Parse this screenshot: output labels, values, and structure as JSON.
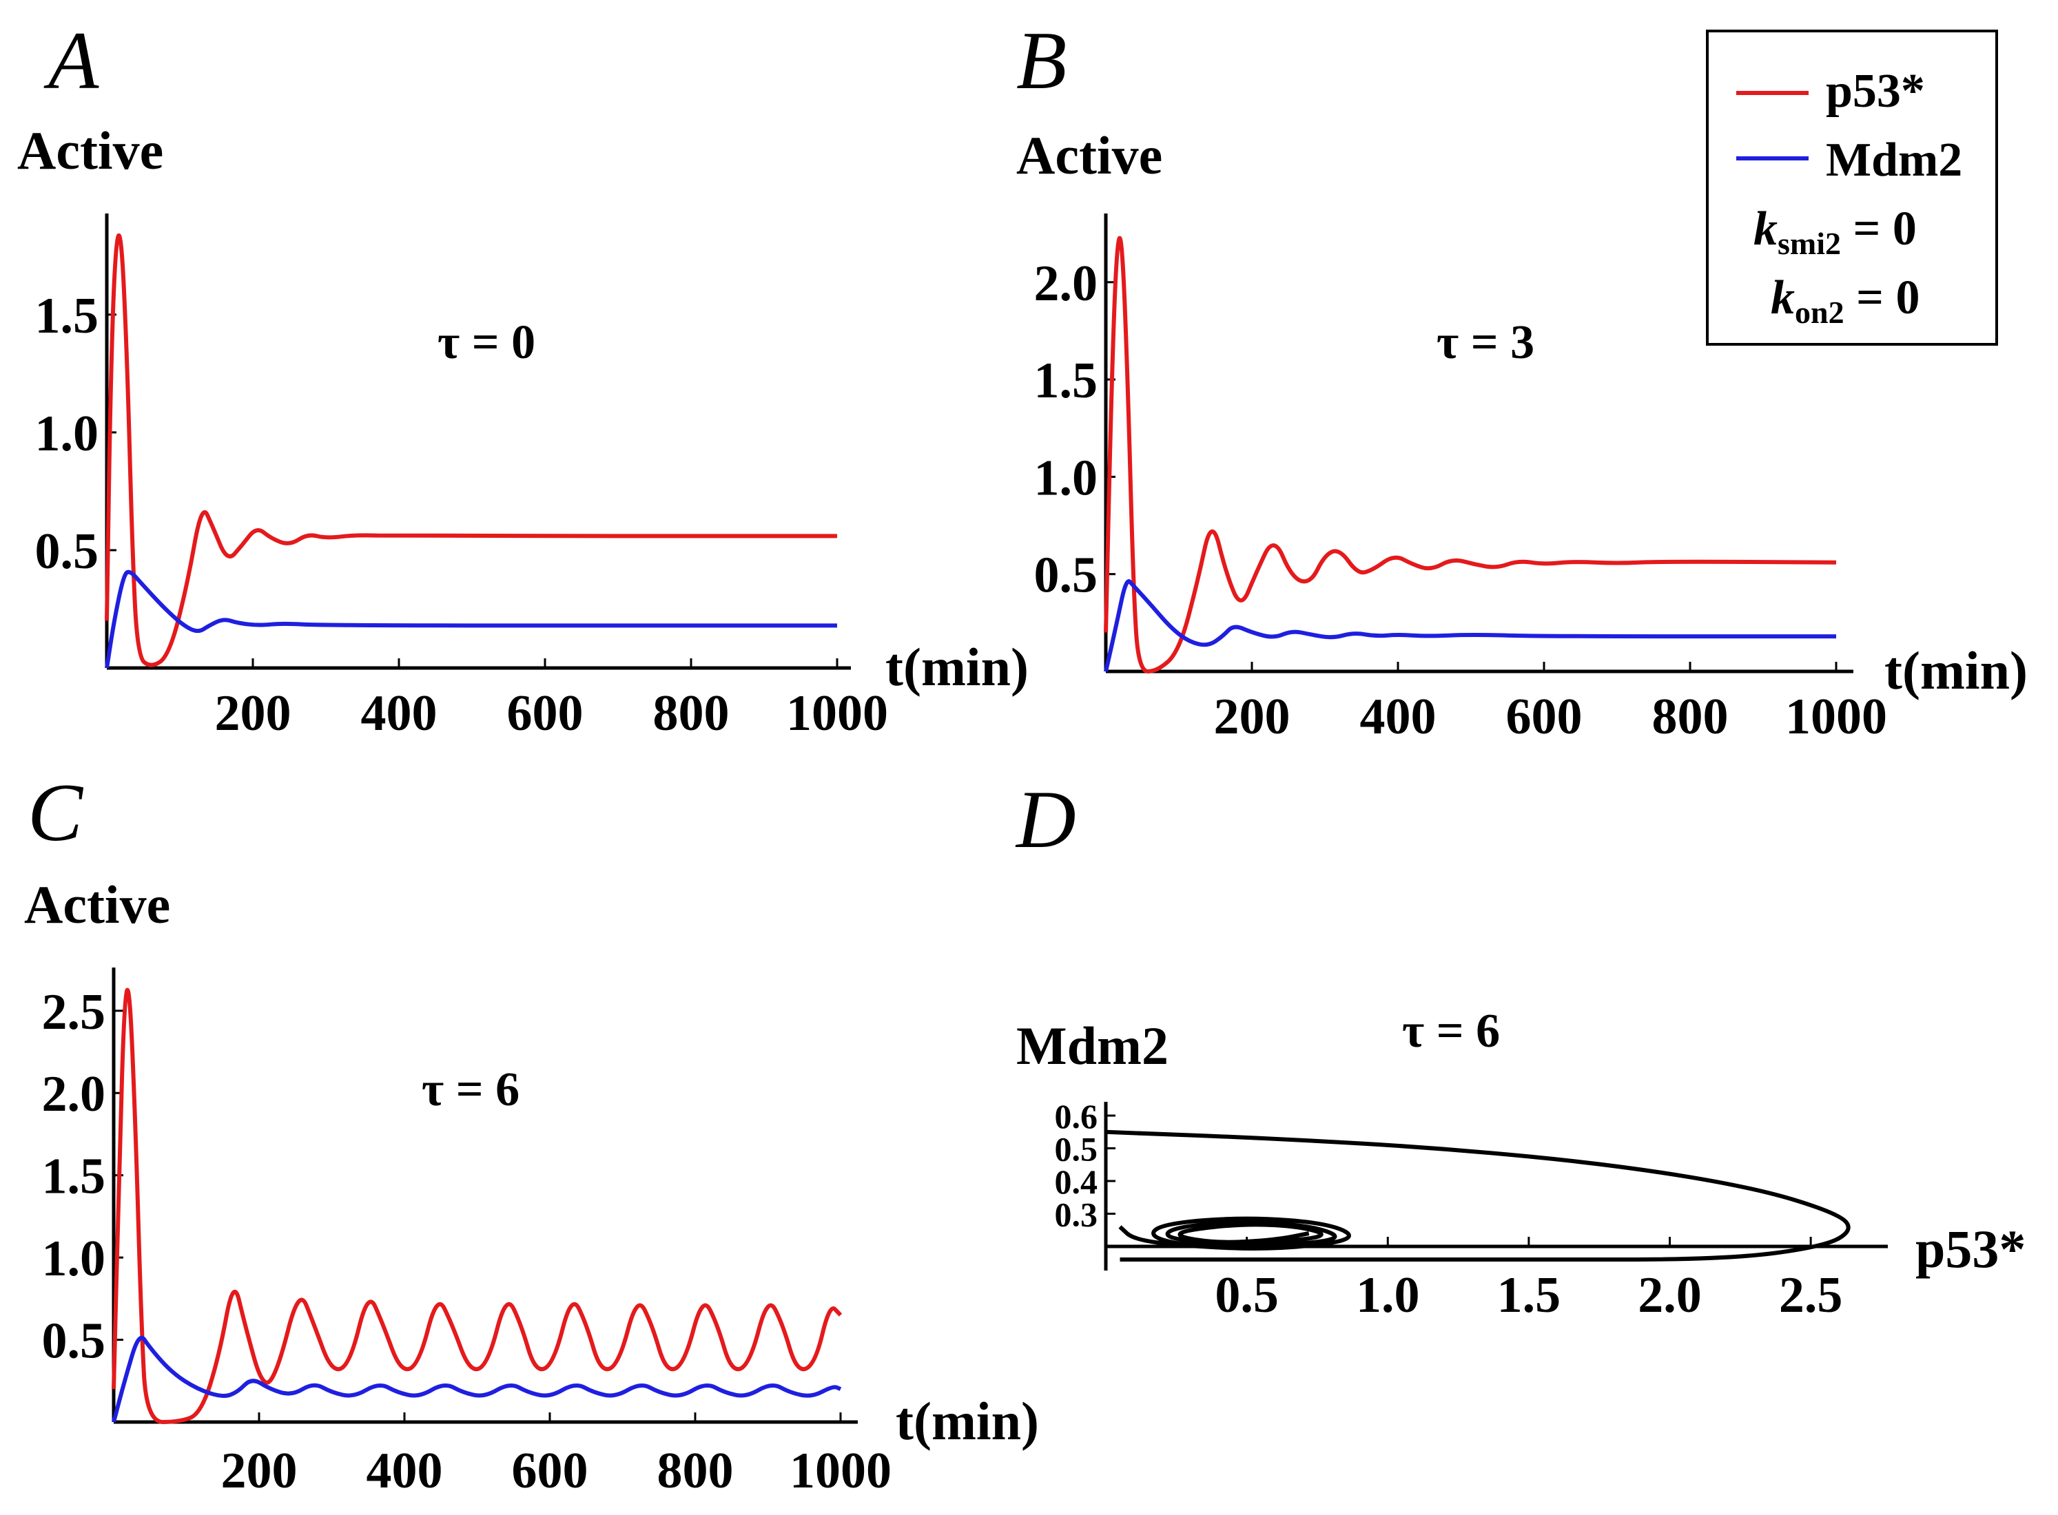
{
  "colors": {
    "p53": "#e41a1c",
    "mdm2": "#1f1fe0",
    "axis": "#000000"
  },
  "legend": {
    "p53": "p53*",
    "mdm2": "Mdm2",
    "k1_sym": "k",
    "k1_sub": "smi2",
    "k1_rest": " = 0",
    "k2_sym": "k",
    "k2_sub": "on2",
    "k2_rest": " = 0"
  },
  "chart_data": [
    {
      "panel": "A",
      "type": "line",
      "ylabel": "Active",
      "xlabel": "t(min)",
      "annotation": "τ = 0",
      "xlim": [
        0,
        1000
      ],
      "ylim": [
        0,
        1.9
      ],
      "xticks": [
        "200",
        "400",
        "600",
        "800",
        "1000"
      ],
      "yticks": [
        "0.5",
        "1.0",
        "1.5"
      ],
      "series": [
        {
          "name": "p53*",
          "color": "p53",
          "points": [
            [
              0,
              0.2
            ],
            [
              5,
              1.2
            ],
            [
              12,
              1.82
            ],
            [
              20,
              1.85
            ],
            [
              28,
              1.3
            ],
            [
              35,
              0.5
            ],
            [
              42,
              0.05
            ],
            [
              60,
              0
            ],
            [
              85,
              0.05
            ],
            [
              110,
              0.35
            ],
            [
              130,
              0.7
            ],
            [
              145,
              0.6
            ],
            [
              165,
              0.45
            ],
            [
              185,
              0.52
            ],
            [
              205,
              0.6
            ],
            [
              225,
              0.55
            ],
            [
              250,
              0.52
            ],
            [
              275,
              0.57
            ],
            [
              300,
              0.55
            ],
            [
              340,
              0.565
            ],
            [
              400,
              0.56
            ],
            [
              1000,
              0.56
            ]
          ]
        },
        {
          "name": "Mdm2",
          "color": "mdm2",
          "points": [
            [
              0,
              0
            ],
            [
              10,
              0.2
            ],
            [
              22,
              0.38
            ],
            [
              30,
              0.42
            ],
            [
              50,
              0.35
            ],
            [
              80,
              0.25
            ],
            [
              105,
              0.18
            ],
            [
              125,
              0.15
            ],
            [
              140,
              0.18
            ],
            [
              160,
              0.21
            ],
            [
              180,
              0.19
            ],
            [
              210,
              0.18
            ],
            [
              240,
              0.19
            ],
            [
              300,
              0.18
            ],
            [
              1000,
              0.18
            ]
          ]
        }
      ]
    },
    {
      "panel": "B",
      "type": "line",
      "ylabel": "Active",
      "xlabel": "t(min)",
      "annotation": "τ = 3",
      "xlim": [
        0,
        1000
      ],
      "ylim": [
        0,
        2.3
      ],
      "xticks": [
        "200",
        "400",
        "600",
        "800",
        "1000"
      ],
      "yticks": [
        "0.5",
        "1.0",
        "1.5",
        "2.0"
      ],
      "series": [
        {
          "name": "p53*",
          "color": "p53",
          "points": [
            [
              0,
              0.2
            ],
            [
              8,
              1.5
            ],
            [
              15,
              2.2
            ],
            [
              22,
              2.25
            ],
            [
              30,
              1.5
            ],
            [
              38,
              0.4
            ],
            [
              45,
              0
            ],
            [
              70,
              0
            ],
            [
              100,
              0.1
            ],
            [
              125,
              0.45
            ],
            [
              145,
              0.8
            ],
            [
              165,
              0.5
            ],
            [
              185,
              0.32
            ],
            [
              205,
              0.5
            ],
            [
              230,
              0.7
            ],
            [
              255,
              0.48
            ],
            [
              280,
              0.45
            ],
            [
              300,
              0.6
            ],
            [
              320,
              0.63
            ],
            [
              345,
              0.5
            ],
            [
              365,
              0.52
            ],
            [
              395,
              0.6
            ],
            [
              420,
              0.55
            ],
            [
              445,
              0.52
            ],
            [
              475,
              0.58
            ],
            [
              505,
              0.55
            ],
            [
              535,
              0.53
            ],
            [
              565,
              0.57
            ],
            [
              600,
              0.55
            ],
            [
              640,
              0.565
            ],
            [
              700,
              0.555
            ],
            [
              760,
              0.565
            ],
            [
              1000,
              0.56
            ]
          ]
        },
        {
          "name": "Mdm2",
          "color": "mdm2",
          "points": [
            [
              0,
              0
            ],
            [
              15,
              0.25
            ],
            [
              28,
              0.48
            ],
            [
              38,
              0.44
            ],
            [
              60,
              0.35
            ],
            [
              90,
              0.22
            ],
            [
              115,
              0.15
            ],
            [
              140,
              0.13
            ],
            [
              160,
              0.18
            ],
            [
              175,
              0.24
            ],
            [
              200,
              0.2
            ],
            [
              230,
              0.17
            ],
            [
              255,
              0.21
            ],
            [
              280,
              0.19
            ],
            [
              310,
              0.17
            ],
            [
              340,
              0.2
            ],
            [
              370,
              0.18
            ],
            [
              400,
              0.19
            ],
            [
              440,
              0.18
            ],
            [
              500,
              0.19
            ],
            [
              600,
              0.18
            ],
            [
              1000,
              0.18
            ]
          ]
        }
      ]
    },
    {
      "panel": "C",
      "type": "line",
      "ylabel": "Active",
      "xlabel": "t(min)",
      "annotation": "τ = 6",
      "xlim": [
        0,
        1000
      ],
      "ylim": [
        0,
        2.7
      ],
      "xticks": [
        "200",
        "400",
        "600",
        "800",
        "1000"
      ],
      "yticks": [
        "0.5",
        "1.0",
        "1.5",
        "2.0",
        "2.5"
      ],
      "series": [
        {
          "name": "p53*",
          "color": "p53",
          "points": [
            [
              0,
              0.2
            ],
            [
              8,
              1.6
            ],
            [
              15,
              2.6
            ],
            [
              22,
              2.65
            ],
            [
              30,
              1.8
            ],
            [
              38,
              0.6
            ],
            [
              45,
              0
            ],
            [
              90,
              0
            ],
            [
              120,
              0.05
            ],
            [
              145,
              0.4
            ],
            [
              165,
              0.88
            ],
            [
              180,
              0.6
            ],
            [
              205,
              0.2
            ],
            [
              225,
              0.3
            ],
            [
              255,
              0.82
            ],
            [
              275,
              0.6
            ],
            [
              300,
              0.3
            ],
            [
              325,
              0.35
            ],
            [
              350,
              0.8
            ],
            [
              370,
              0.6
            ],
            [
              395,
              0.3
            ],
            [
              420,
              0.35
            ],
            [
              445,
              0.78
            ],
            [
              465,
              0.6
            ],
            [
              490,
              0.3
            ],
            [
              515,
              0.35
            ],
            [
              540,
              0.78
            ],
            [
              560,
              0.6
            ],
            [
              580,
              0.3
            ],
            [
              605,
              0.35
            ],
            [
              630,
              0.78
            ],
            [
              650,
              0.6
            ],
            [
              670,
              0.3
            ],
            [
              695,
              0.35
            ],
            [
              720,
              0.77
            ],
            [
              740,
              0.6
            ],
            [
              760,
              0.3
            ],
            [
              785,
              0.35
            ],
            [
              810,
              0.77
            ],
            [
              830,
              0.6
            ],
            [
              850,
              0.3
            ],
            [
              875,
              0.35
            ],
            [
              900,
              0.77
            ],
            [
              920,
              0.6
            ],
            [
              940,
              0.3
            ],
            [
              965,
              0.35
            ],
            [
              985,
              0.72
            ],
            [
              1000,
              0.65
            ]
          ]
        },
        {
          "name": "Mdm2",
          "color": "mdm2",
          "points": [
            [
              0,
              0
            ],
            [
              15,
              0.25
            ],
            [
              35,
              0.55
            ],
            [
              50,
              0.45
            ],
            [
              80,
              0.3
            ],
            [
              115,
              0.2
            ],
            [
              150,
              0.15
            ],
            [
              170,
              0.18
            ],
            [
              190,
              0.27
            ],
            [
              215,
              0.2
            ],
            [
              245,
              0.16
            ],
            [
              275,
              0.24
            ],
            [
              300,
              0.18
            ],
            [
              330,
              0.15
            ],
            [
              365,
              0.24
            ],
            [
              390,
              0.18
            ],
            [
              420,
              0.15
            ],
            [
              455,
              0.24
            ],
            [
              480,
              0.18
            ],
            [
              510,
              0.15
            ],
            [
              545,
              0.24
            ],
            [
              570,
              0.18
            ],
            [
              600,
              0.15
            ],
            [
              635,
              0.24
            ],
            [
              660,
              0.18
            ],
            [
              690,
              0.15
            ],
            [
              725,
              0.24
            ],
            [
              750,
              0.18
            ],
            [
              780,
              0.15
            ],
            [
              815,
              0.24
            ],
            [
              840,
              0.18
            ],
            [
              870,
              0.15
            ],
            [
              905,
              0.24
            ],
            [
              930,
              0.18
            ],
            [
              960,
              0.15
            ],
            [
              990,
              0.22
            ],
            [
              1000,
              0.2
            ]
          ]
        }
      ]
    },
    {
      "panel": "D",
      "type": "line",
      "ylabel": "Mdm2",
      "xlabel": "p53*",
      "annotation": "τ = 6",
      "xlim": [
        0,
        2.7
      ],
      "ylim": [
        0,
        0.6
      ],
      "xticks": [
        "0.5",
        "1.0",
        "1.5",
        "2.0",
        "2.5"
      ],
      "yticks": [
        "0.3",
        "0.4",
        "0.5",
        "0.6"
      ],
      "series": [
        {
          "name": "trajectory",
          "color": "axis",
          "points": [
            [
              0.0,
              0.55
            ],
            [
              0.6,
              0.53
            ],
            [
              1.2,
              0.5
            ],
            [
              1.8,
              0.45
            ],
            [
              2.3,
              0.38
            ],
            [
              2.6,
              0.3
            ],
            [
              2.65,
              0.25
            ],
            [
              2.55,
              0.2
            ],
            [
              2.2,
              0.15
            ],
            [
              1.5,
              0.1
            ],
            [
              0.9,
              0.08
            ],
            [
              0.3,
              0.07
            ],
            [
              0.05,
              0.07
            ]
          ]
        },
        {
          "name": "spiral",
          "color": "axis",
          "points": [
            [
              0.05,
              0.26
            ],
            [
              0.1,
              0.22
            ],
            [
              0.3,
              0.2
            ],
            [
              0.6,
              0.19
            ],
            [
              0.9,
              0.22
            ],
            [
              0.8,
              0.27
            ],
            [
              0.5,
              0.29
            ],
            [
              0.2,
              0.27
            ],
            [
              0.15,
              0.23
            ],
            [
              0.3,
              0.2
            ],
            [
              0.55,
              0.2
            ],
            [
              0.85,
              0.22
            ],
            [
              0.75,
              0.26
            ],
            [
              0.5,
              0.28
            ],
            [
              0.25,
              0.26
            ],
            [
              0.2,
              0.23
            ],
            [
              0.35,
              0.21
            ],
            [
              0.55,
              0.21
            ],
            [
              0.8,
              0.23
            ],
            [
              0.7,
              0.26
            ],
            [
              0.5,
              0.27
            ],
            [
              0.28,
              0.25
            ],
            [
              0.25,
              0.23
            ],
            [
              0.4,
              0.21
            ],
            [
              0.6,
              0.22
            ],
            [
              0.72,
              0.24
            ]
          ]
        }
      ]
    }
  ]
}
